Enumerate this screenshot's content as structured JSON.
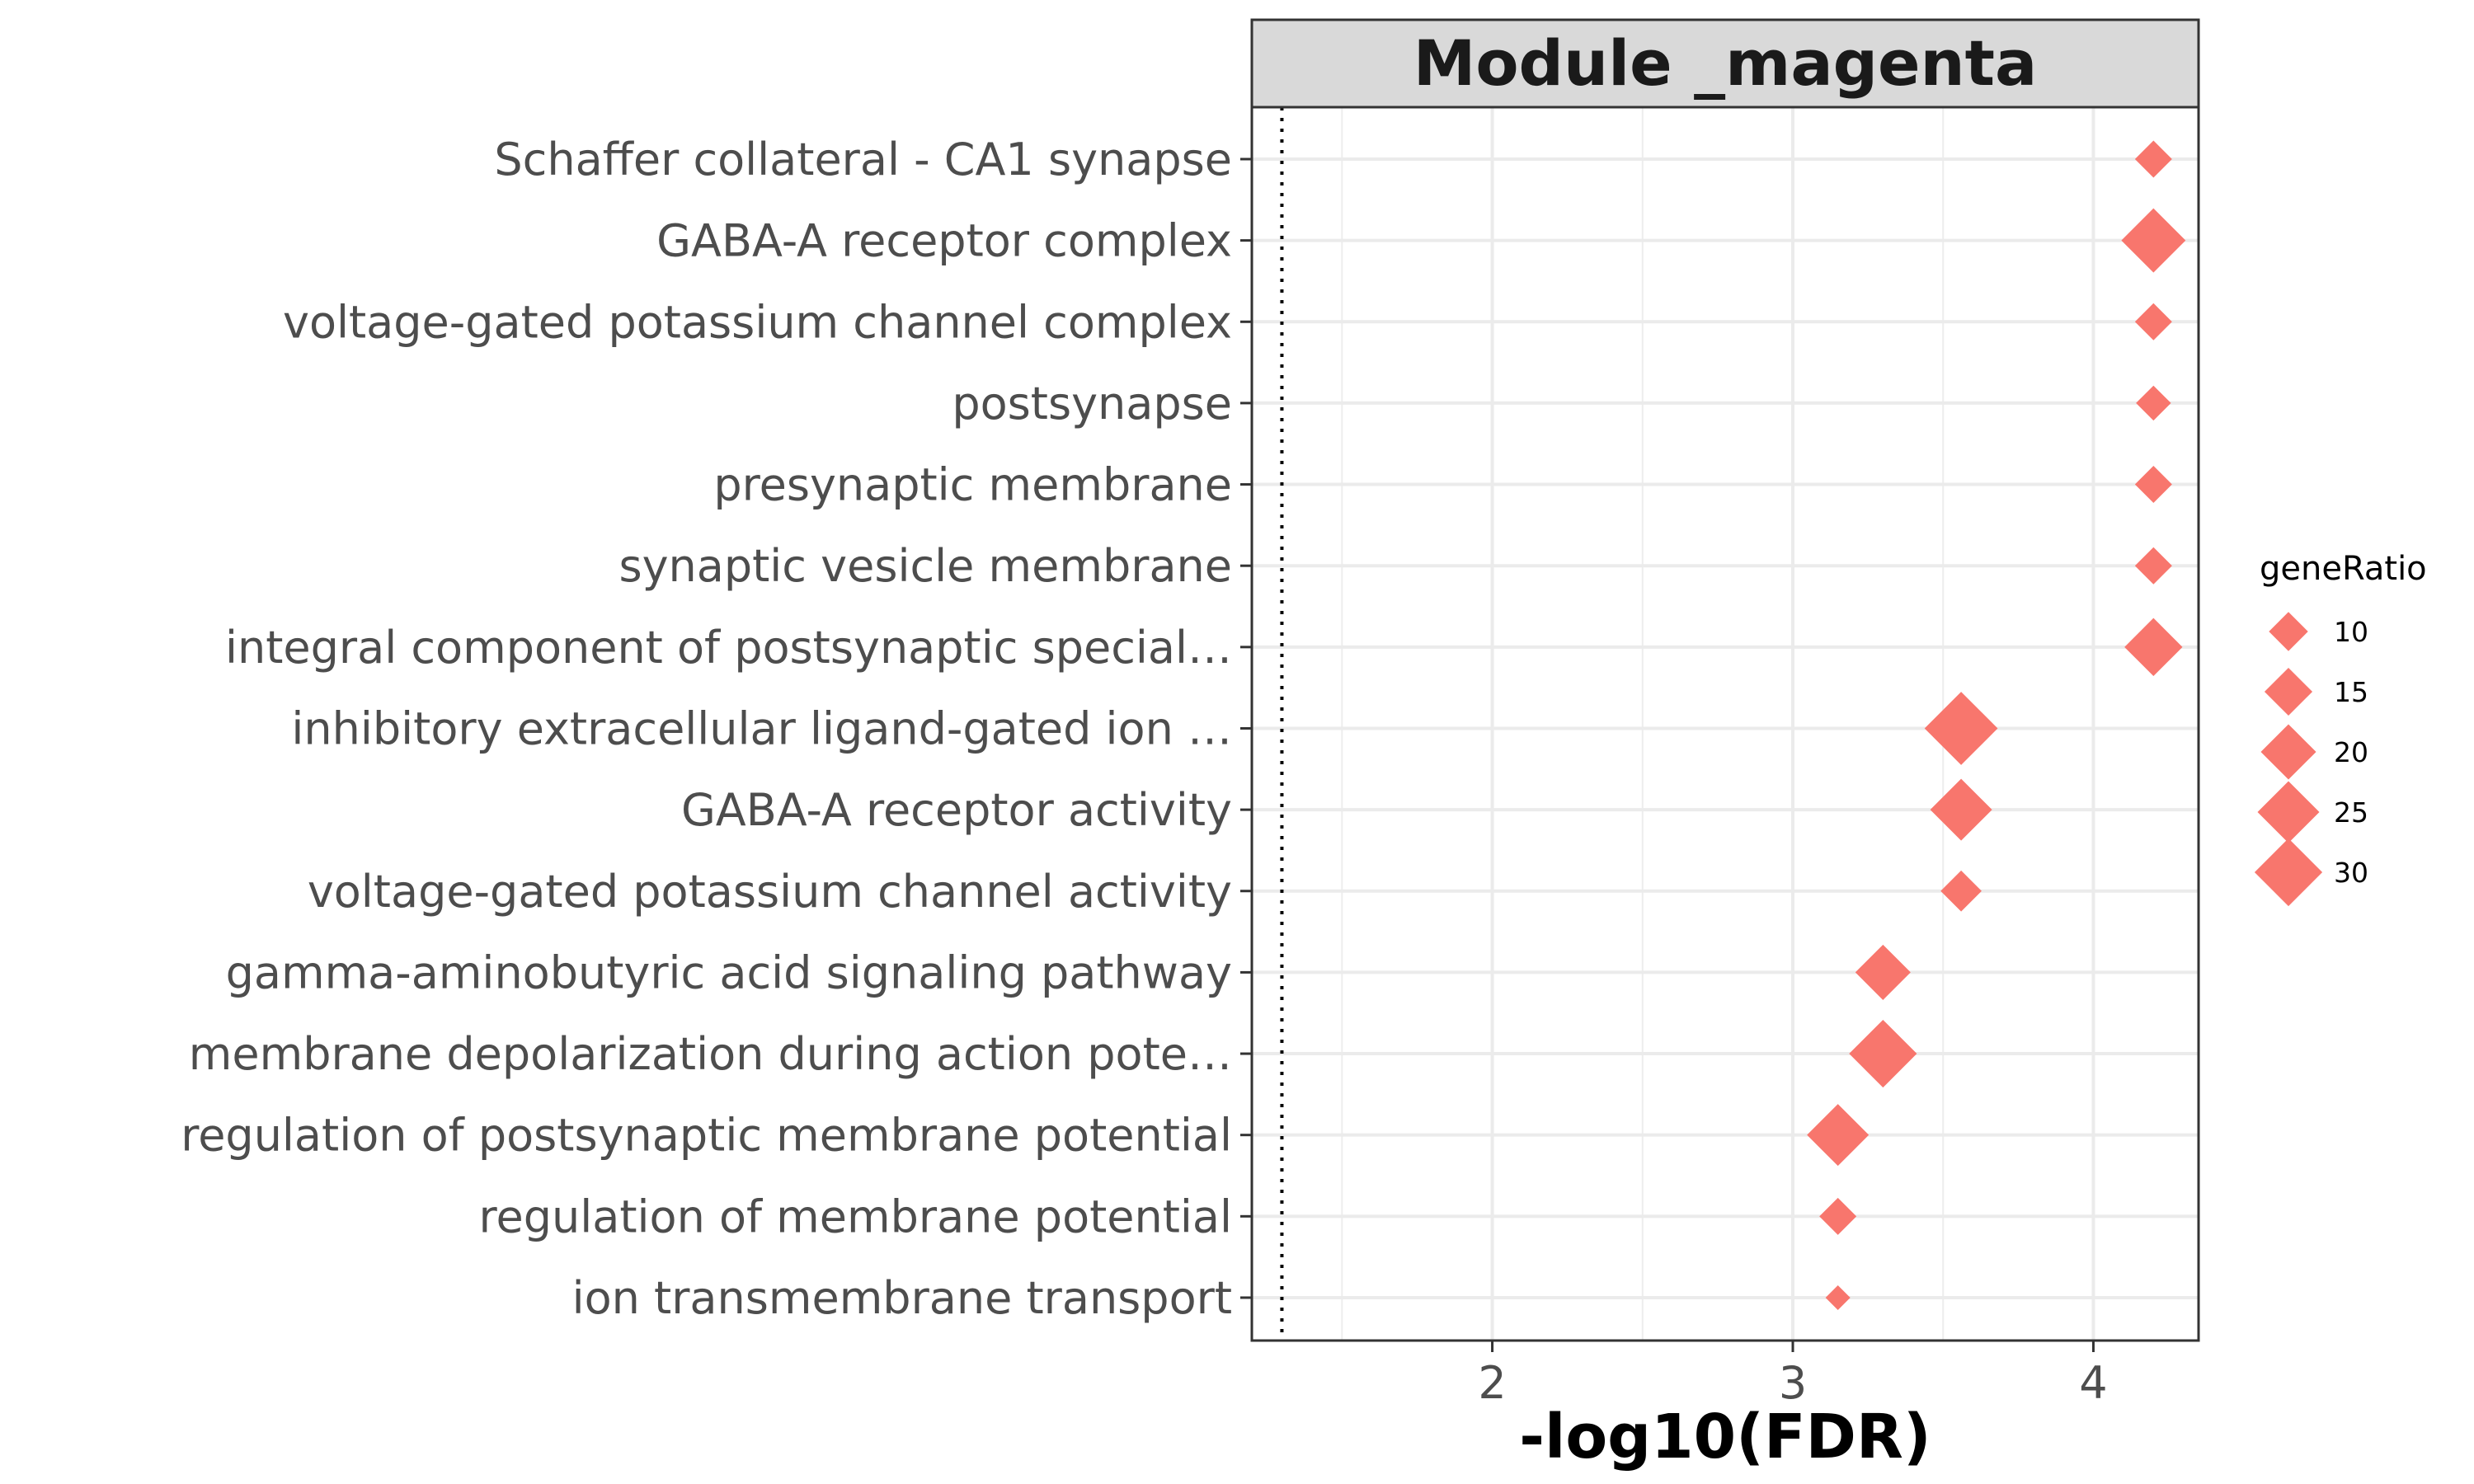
{
  "chart_data": {
    "type": "scatter",
    "strip_title": "Module _magenta",
    "xlabel": "-log10(FDR)",
    "ylabel": "",
    "xlim": [
      1.2,
      4.35
    ],
    "x_ticks": [
      2,
      3,
      4
    ],
    "x_tick_labels": [
      "2",
      "3",
      "4"
    ],
    "reference_line_x": 1.3,
    "grid": true,
    "marker": "diamond",
    "marker_color": "#f8766d",
    "categories": [
      "Schaffer collateral - CA1 synapse",
      "GABA-A receptor complex",
      "voltage-gated potassium channel complex",
      "postsynapse",
      "presynaptic membrane",
      "synaptic vesicle membrane",
      "integral component of postsynaptic special…",
      "inhibitory extracellular ligand-gated ion …",
      "GABA-A receptor activity",
      "voltage-gated potassium channel activity",
      "gamma-aminobutyric acid signaling pathway",
      "membrane depolarization during action pote…",
      "regulation of postsynaptic membrane potential",
      "regulation of membrane potential",
      "ion transmembrane transport"
    ],
    "x": [
      4.2,
      4.2,
      4.2,
      4.2,
      4.2,
      4.2,
      4.2,
      3.56,
      3.56,
      3.56,
      3.3,
      3.3,
      3.15,
      3.15,
      3.15
    ],
    "size": [
      9,
      27,
      9,
      8,
      9,
      9,
      22,
      35,
      25,
      11,
      20,
      30,
      25,
      9,
      4
    ],
    "legend": {
      "title": "geneRatio",
      "position": "right",
      "entries": [
        "10",
        "15",
        "20",
        "25",
        "30"
      ],
      "sizes": [
        10,
        15,
        20,
        25,
        30
      ]
    }
  }
}
